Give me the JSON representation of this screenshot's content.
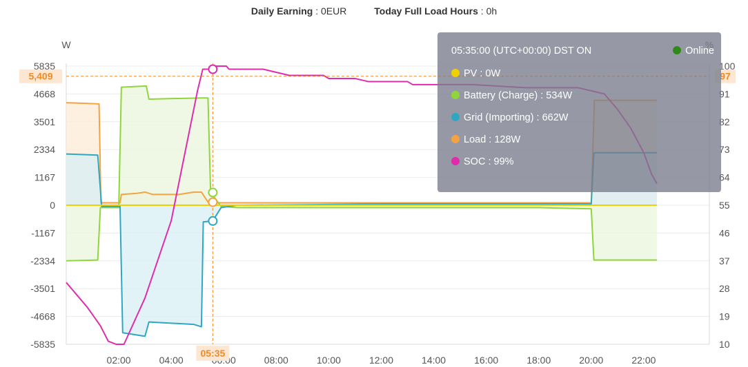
{
  "summary": {
    "daily_earning_label": "Daily Earning",
    "daily_earning_value": "0EUR",
    "full_load_label": "Today Full Load Hours",
    "full_load_value": "0h"
  },
  "tooltip": {
    "time": "05:35:00 (UTC+00:00) DST ON",
    "status": "Online",
    "rows": [
      {
        "label": "PV :  0W",
        "color": "#f0d000"
      },
      {
        "label": "Battery (Charge) :  534W",
        "color": "#8ed63a"
      },
      {
        "label": "Grid (Importing) :  662W",
        "color": "#2fa7c0"
      },
      {
        "label": "Load :  128W",
        "color": "#f5a340"
      },
      {
        "label": "SOC :  99%",
        "color": "#e02bac"
      }
    ]
  },
  "chart_data": {
    "type": "area",
    "yaxis_left": {
      "unit": "W",
      "ticks": [
        5835,
        4668,
        3501,
        2334,
        1167,
        0,
        -1167,
        -2334,
        -3501,
        -4668,
        -5835
      ],
      "range": [
        -5835,
        5835
      ]
    },
    "yaxis_right": {
      "unit": "%",
      "ticks": [
        100,
        91,
        82,
        73,
        64,
        55,
        46,
        37,
        28,
        19,
        10
      ],
      "range": [
        10,
        100
      ]
    },
    "x_ticks": [
      "02:00",
      "04:00",
      "06:00",
      "08:00",
      "10:00",
      "12:00",
      "14:00",
      "16:00",
      "18:00",
      "20:00",
      "22:00"
    ],
    "x_range_hours": [
      0,
      24.5
    ],
    "crosshair": {
      "x_label": "05:35",
      "y_left_label": "5,409",
      "y_right_label": "97"
    },
    "series": [
      {
        "name": "Load",
        "axis": "left",
        "color": "#f5a340",
        "fill": "#fdebd7",
        "points": [
          [
            0,
            4300
          ],
          [
            1.25,
            4250
          ],
          [
            1.32,
            100
          ],
          [
            2.05,
            100
          ],
          [
            2.1,
            450
          ],
          [
            2.7,
            500
          ],
          [
            3.0,
            550
          ],
          [
            3.3,
            450
          ],
          [
            4.3,
            450
          ],
          [
            4.85,
            550
          ],
          [
            5.15,
            550
          ],
          [
            5.45,
            50
          ],
          [
            5.58,
            128
          ],
          [
            5.8,
            100
          ],
          [
            6.5,
            100
          ],
          [
            8.0,
            100
          ],
          [
            12.0,
            100
          ],
          [
            16.0,
            100
          ],
          [
            19.5,
            100
          ],
          [
            20.0,
            100
          ],
          [
            20.12,
            4400
          ],
          [
            22.5,
            4400
          ]
        ]
      },
      {
        "name": "Battery",
        "axis": "left",
        "color": "#8ed63a",
        "fill": "#eaf6dc",
        "points": [
          [
            0,
            -2334
          ],
          [
            1.2,
            -2300
          ],
          [
            1.3,
            -100
          ],
          [
            2.0,
            -100
          ],
          [
            2.1,
            4950
          ],
          [
            3.05,
            5000
          ],
          [
            3.15,
            4450
          ],
          [
            5.15,
            4500
          ],
          [
            5.4,
            4500
          ],
          [
            5.5,
            534
          ],
          [
            5.9,
            -50
          ],
          [
            6.5,
            -100
          ],
          [
            10.0,
            -100
          ],
          [
            14.0,
            -100
          ],
          [
            18.0,
            -100
          ],
          [
            20.0,
            -150
          ],
          [
            20.1,
            -2300
          ],
          [
            22.5,
            -2300
          ]
        ]
      },
      {
        "name": "Grid",
        "axis": "left",
        "color": "#2fa7c0",
        "fill": "#d7eff4",
        "points": [
          [
            0,
            2150
          ],
          [
            1.2,
            2100
          ],
          [
            1.35,
            -50
          ],
          [
            2.05,
            -50
          ],
          [
            2.15,
            -5350
          ],
          [
            3.0,
            -5500
          ],
          [
            3.15,
            -4900
          ],
          [
            4.85,
            -5000
          ],
          [
            5.15,
            -5100
          ],
          [
            5.22,
            -700
          ],
          [
            5.58,
            -662
          ],
          [
            5.9,
            -100
          ],
          [
            6.5,
            0
          ],
          [
            12.0,
            50
          ],
          [
            18.0,
            50
          ],
          [
            20.0,
            50
          ],
          [
            20.1,
            2200
          ],
          [
            22.5,
            2200
          ]
        ]
      },
      {
        "name": "PV",
        "axis": "left",
        "color": "#f0d000",
        "fill": "none",
        "points": [
          [
            0,
            0
          ],
          [
            22.5,
            0
          ]
        ]
      },
      {
        "name": "SOC",
        "axis": "right",
        "color": "#e02bac",
        "fill": "none",
        "points": [
          [
            0,
            30
          ],
          [
            0.4,
            26
          ],
          [
            0.8,
            22
          ],
          [
            1.3,
            16
          ],
          [
            1.6,
            11
          ],
          [
            1.9,
            10
          ],
          [
            2.2,
            10
          ],
          [
            3.0,
            25
          ],
          [
            4.0,
            50
          ],
          [
            5.0,
            92
          ],
          [
            5.2,
            99
          ],
          [
            5.58,
            99
          ],
          [
            5.65,
            100
          ],
          [
            6.1,
            100
          ],
          [
            6.2,
            99
          ],
          [
            7.5,
            99
          ],
          [
            8.5,
            97
          ],
          [
            9.8,
            97
          ],
          [
            10.0,
            96
          ],
          [
            11.0,
            96
          ],
          [
            11.5,
            95
          ],
          [
            13.0,
            95
          ],
          [
            13.2,
            94
          ],
          [
            15.5,
            94
          ],
          [
            17.5,
            93
          ],
          [
            19.5,
            93
          ],
          [
            20.5,
            91
          ],
          [
            21.0,
            86
          ],
          [
            21.5,
            80
          ],
          [
            22.0,
            72
          ],
          [
            22.3,
            65
          ],
          [
            22.5,
            62
          ]
        ]
      }
    ]
  }
}
